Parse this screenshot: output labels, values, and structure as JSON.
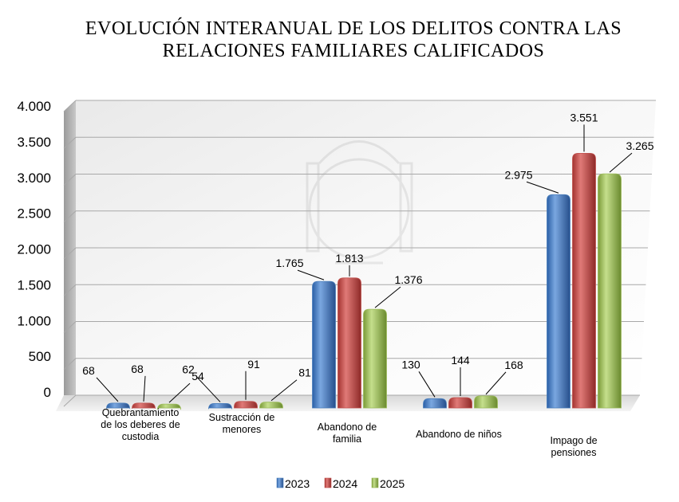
{
  "chart_data": {
    "type": "bar",
    "title_lines": [
      "EVOLUCIÓN INTERANUAL DE LOS DELITOS CONTRA LAS",
      "RELACIONES FAMILIARES CALIFICADOS"
    ],
    "categories": [
      [
        "Quebrantamiento",
        "de los deberes de",
        "custodia"
      ],
      [
        "Sustracción de",
        "menores"
      ],
      [
        "Abandono de",
        "familia"
      ],
      [
        "Abandono de niños"
      ],
      [
        "Impago de",
        "pensiones"
      ]
    ],
    "series": [
      {
        "name": "2023",
        "values": [
          68,
          62,
          1765,
          130,
          2975
        ],
        "labels": [
          "68",
          "62",
          "1.765",
          "130",
          "2.975"
        ],
        "color": "#4a7ebb"
      },
      {
        "name": "2024",
        "values": [
          68,
          91,
          1813,
          144,
          3551
        ],
        "labels": [
          "68",
          "91",
          "1.813",
          "144",
          "3.551"
        ],
        "color": "#c0504d"
      },
      {
        "name": "2025",
        "values": [
          54,
          81,
          1376,
          168,
          3265
        ],
        "labels": [
          "54",
          "81",
          "1.376",
          "168",
          "3.265"
        ],
        "color": "#9bbb59"
      }
    ],
    "yticks": [
      0,
      500,
      1000,
      1500,
      2000,
      2500,
      3000,
      3500,
      4000
    ],
    "ytick_labels": [
      "0",
      "500",
      "1.000",
      "1.500",
      "2.000",
      "2.500",
      "3.000",
      "3.500",
      "4.000"
    ],
    "ylim": [
      0,
      4000
    ],
    "grid": true,
    "legend_position": "bottom",
    "three_d": true
  }
}
